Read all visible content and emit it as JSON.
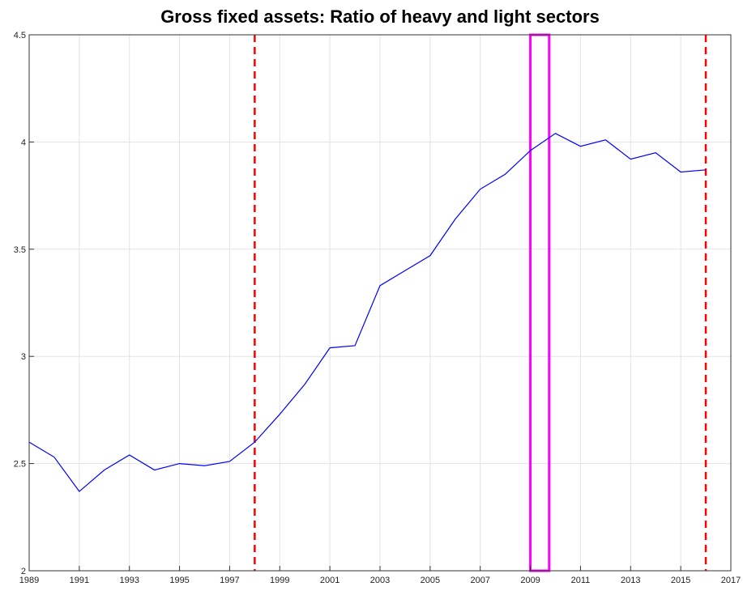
{
  "chart_data": {
    "type": "line",
    "title": "Gross fixed assets: Ratio of heavy and light sectors",
    "x": [
      1989,
      1990,
      1991,
      1992,
      1993,
      1994,
      1995,
      1996,
      1997,
      1998,
      1999,
      2000,
      2001,
      2002,
      2003,
      2004,
      2005,
      2006,
      2007,
      2008,
      2009,
      2010,
      2011,
      2012,
      2013,
      2014,
      2015,
      2016
    ],
    "series": [
      {
        "color": "#0000ff",
        "values": [
          2.6,
          2.53,
          2.37,
          2.47,
          2.54,
          2.47,
          2.5,
          2.49,
          2.51,
          2.6,
          2.73,
          2.87,
          3.04,
          3.05,
          3.33,
          3.4,
          3.47,
          3.64,
          3.78,
          3.85,
          3.96,
          4.04,
          3.98,
          4.01,
          3.92,
          3.95,
          3.86,
          3.87
        ]
      }
    ],
    "xlim": [
      1989,
      2017
    ],
    "xticks": [
      1989,
      1991,
      1993,
      1995,
      1997,
      1999,
      2001,
      2003,
      2005,
      2007,
      2009,
      2011,
      2013,
      2015,
      2017
    ],
    "ylim": [
      2,
      4.5
    ],
    "yticks": [
      2,
      2.5,
      3,
      3.5,
      4,
      4.5
    ],
    "grid": true,
    "vlines": {
      "x": [
        1998,
        2016
      ],
      "color": "#ff0000"
    },
    "highlight": {
      "x": [
        2009,
        2009.75
      ],
      "color": "#ff00ff"
    }
  }
}
